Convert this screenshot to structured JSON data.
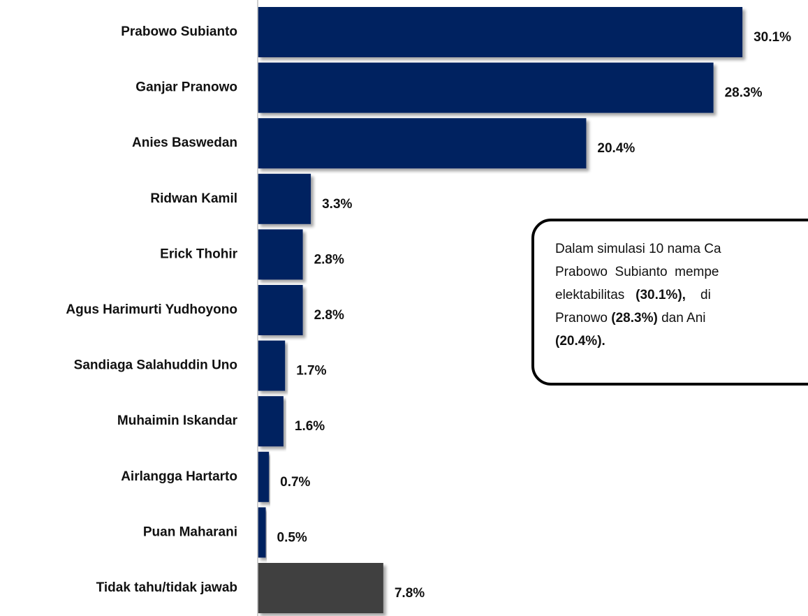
{
  "chart_data": {
    "type": "bar",
    "orientation": "horizontal",
    "categories": [
      "Prabowo Subianto",
      "Ganjar Pranowo",
      "Anies Baswedan",
      "Ridwan Kamil",
      "Erick Thohir",
      "Agus Harimurti Yudhoyono",
      "Sandiaga Salahuddin Uno",
      "Muhaimin Iskandar",
      "Airlangga Hartarto",
      "Puan Maharani",
      "Tidak tahu/tidak jawab"
    ],
    "values": [
      30.1,
      28.3,
      20.4,
      3.3,
      2.8,
      2.8,
      1.7,
      1.6,
      0.7,
      0.5,
      7.8
    ],
    "value_labels": [
      "30.1%",
      "28.3%",
      "20.4%",
      "3.3%",
      "2.8%",
      "2.8%",
      "1.7%",
      "1.6%",
      "0.7%",
      "0.5%",
      "7.8%"
    ],
    "colors": [
      "#002060",
      "#002060",
      "#002060",
      "#002060",
      "#002060",
      "#002060",
      "#002060",
      "#002060",
      "#002060",
      "#002060",
      "#404040"
    ],
    "annotation": {
      "lines": [
        [
          {
            "text": "Dalam simulasi 10 nama Ca",
            "bold": false
          }
        ],
        [
          {
            "text": "Prabowo  Subianto  mempe",
            "bold": false
          }
        ],
        [
          {
            "text": "elektabilitas   ",
            "bold": false
          },
          {
            "text": "(30.1%),",
            "bold": true
          },
          {
            "text": "    di",
            "bold": false
          }
        ],
        [
          {
            "text": "Pranowo ",
            "bold": false
          },
          {
            "text": "(28.3%)",
            "bold": true
          },
          {
            "text": " dan Ani",
            "bold": false
          }
        ],
        [
          {
            "text": "(20.4%).",
            "bold": true
          }
        ]
      ]
    }
  }
}
